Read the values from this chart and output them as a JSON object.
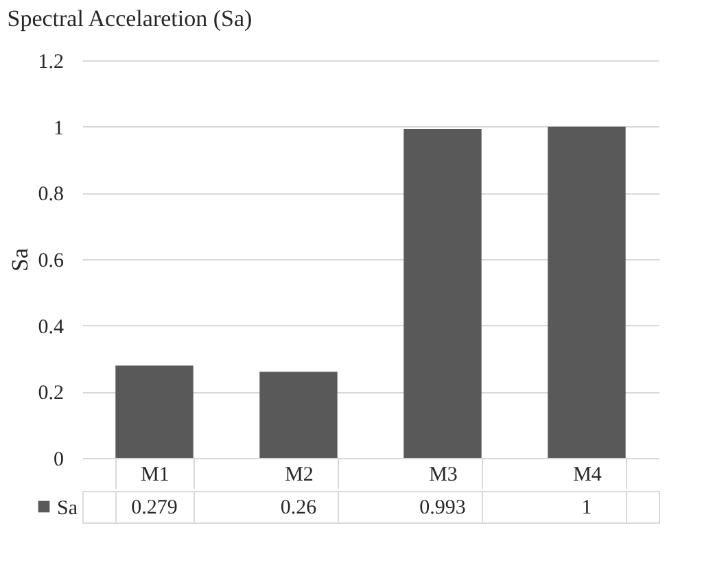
{
  "chart_data": {
    "type": "bar",
    "title": "Spectral Accelaretion (Sa)",
    "ylabel": "Sa",
    "categories": [
      "M1",
      "M2",
      "M3",
      "M4"
    ],
    "series": [
      {
        "name": "Sa",
        "color": "#595959",
        "values": [
          0.279,
          0.26,
          0.993,
          1
        ]
      }
    ],
    "ylim": [
      0,
      1.2
    ],
    "yticks": [
      0,
      0.2,
      0.4,
      0.6,
      0.8,
      1,
      1.2
    ],
    "grid": "y",
    "data_labels": true
  }
}
